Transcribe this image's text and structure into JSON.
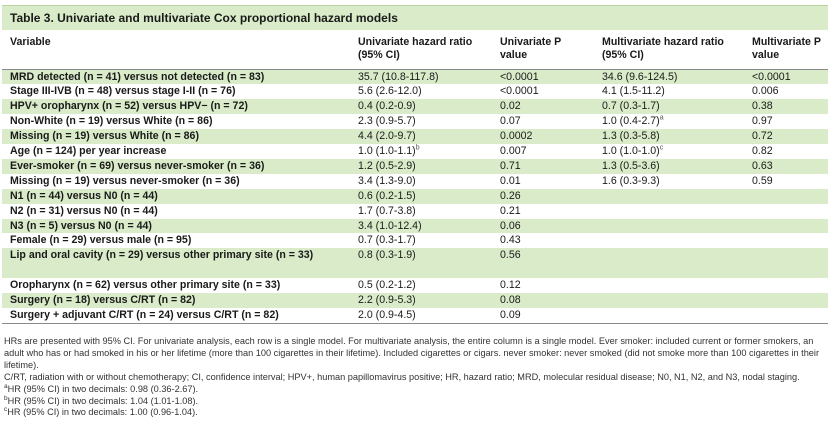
{
  "title": "Table 3.  Univariate and multivariate Cox proportional hazard models",
  "columns": [
    "Variable",
    "Univariate hazard ratio (95% CI)",
    "Univariate P value",
    "Multivariate hazard ratio (95% CI)",
    "Multivariate P value"
  ],
  "rows": [
    {
      "variable": "MRD detected (n = 41) versus not detected (n = 83)",
      "uni_hr": "35.7 (10.8-117.8)",
      "uni_p": "<0.0001",
      "multi_hr": "34.6 (9.6-124.5)",
      "multi_p": "<0.0001",
      "shaded": true
    },
    {
      "variable": "Stage III-IVB (n = 48) versus stage I-II (n = 76)",
      "uni_hr": "5.6 (2.6-12.0)",
      "uni_p": "<0.0001",
      "multi_hr": "4.1 (1.5-11.2)",
      "multi_p": "0.006",
      "shaded": false
    },
    {
      "variable": "HPV+ oropharynx (n = 52) versus HPV− (n = 72)",
      "uni_hr": "0.4 (0.2-0.9)",
      "uni_p": "0.02",
      "multi_hr": "0.7 (0.3-1.7)",
      "multi_p": "0.38",
      "shaded": true
    },
    {
      "variable": "Non-White (n = 19) versus White (n = 86)",
      "uni_hr": "2.3 (0.9-5.7)",
      "uni_p": "0.07",
      "multi_hr": "1.0 (0.4-2.7)",
      "multi_hr_sup": "a",
      "multi_p": "0.97",
      "shaded": false
    },
    {
      "variable": "Missing (n = 19) versus White (n = 86)",
      "uni_hr": "4.4 (2.0-9.7)",
      "uni_p": "0.0002",
      "multi_hr": "1.3 (0.3-5.8)",
      "multi_p": "0.72",
      "shaded": true
    },
    {
      "variable": "Age (n = 124) per year increase",
      "uni_hr": "1.0 (1.0-1.1)",
      "uni_hr_sup": "b",
      "uni_p": "0.007",
      "multi_hr": "1.0 (1.0-1.0)",
      "multi_hr_sup": "c",
      "multi_p": "0.82",
      "shaded": false
    },
    {
      "variable": "Ever-smoker (n = 69) versus never-smoker (n = 36)",
      "uni_hr": "1.2 (0.5-2.9)",
      "uni_p": "0.71",
      "multi_hr": "1.3 (0.5-3.6)",
      "multi_p": "0.63",
      "shaded": true
    },
    {
      "variable": "Missing (n = 19) versus never-smoker (n = 36)",
      "uni_hr": "3.4 (1.3-9.0)",
      "uni_p": "0.01",
      "multi_hr": "1.6 (0.3-9.3)",
      "multi_p": "0.59",
      "shaded": false
    },
    {
      "variable": "N1 (n = 44) versus N0 (n = 44)",
      "uni_hr": "0.6 (0.2-1.5)",
      "uni_p": "0.26",
      "multi_hr": "",
      "multi_p": "",
      "shaded": true
    },
    {
      "variable": "N2 (n = 31) versus N0 (n = 44)",
      "uni_hr": "1.7 (0.7-3.8)",
      "uni_p": "0.21",
      "multi_hr": "",
      "multi_p": "",
      "shaded": false
    },
    {
      "variable": "N3 (n = 5) versus N0 (n = 44)",
      "uni_hr": "3.4 (1.0-12.4)",
      "uni_p": "0.06",
      "multi_hr": "",
      "multi_p": "",
      "shaded": true
    },
    {
      "variable": "Female (n = 29) versus male (n = 95)",
      "uni_hr": "0.7 (0.3-1.7)",
      "uni_p": "0.43",
      "multi_hr": "",
      "multi_p": "",
      "shaded": false
    },
    {
      "variable": "Lip and oral cavity (n = 29) versus other primary site (n = 33)",
      "uni_hr": "0.8 (0.3-1.9)",
      "uni_p": "0.56",
      "multi_hr": "",
      "multi_p": "",
      "shaded": true,
      "tall": true
    },
    {
      "variable": "Oropharynx (n = 62) versus other primary site (n = 33)",
      "uni_hr": "0.5 (0.2-1.2)",
      "uni_p": "0.12",
      "multi_hr": "",
      "multi_p": "",
      "shaded": false
    },
    {
      "variable": "Surgery (n = 18) versus C/RT (n = 82)",
      "uni_hr": "2.2 (0.9-5.3)",
      "uni_p": "0.08",
      "multi_hr": "",
      "multi_p": "",
      "shaded": true
    },
    {
      "variable": "Surgery + adjuvant C/RT (n = 24) versus C/RT (n = 82)",
      "uni_hr": "2.0 (0.9-4.5)",
      "uni_p": "0.09",
      "multi_hr": "",
      "multi_p": "",
      "shaded": false
    }
  ],
  "notes": [
    "HRs are presented with 95% CI. For univariate analysis, each row is a single model. For multivariate analysis, the entire column is a single model. Ever smoker: included current or former smokers, an adult who has or had smoked in his or her lifetime (more than 100 cigarettes in their lifetime). Included cigarettes or cigars. never smoker: never smoked (did not smoke more than 100 cigarettes in their lifetime).",
    "C/RT, radiation with or without chemotherapy; CI, confidence interval; HPV+, human papillomavirus positive; HR, hazard ratio; MRD, molecular residual disease; N0, N1, N2, and N3, nodal staging."
  ],
  "footnotes": [
    {
      "mark": "a",
      "text": "HR (95% CI) in two decimals: 0.98 (0.36-2.67)."
    },
    {
      "mark": "b",
      "text": "HR (95% CI) in two decimals: 1.04 (1.01-1.08)."
    },
    {
      "mark": "c",
      "text": "HR (95% CI) in two decimals: 1.00 (0.96-1.04)."
    }
  ],
  "colors": {
    "header_band": "#d9ebc8",
    "row_shade": "#d9ebc8",
    "rule": "#8a8a8a"
  }
}
